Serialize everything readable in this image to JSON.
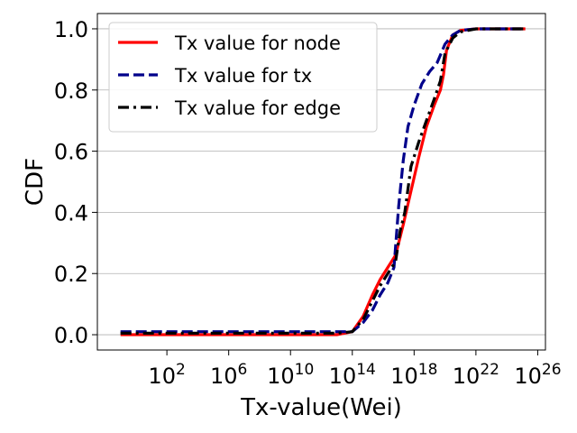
{
  "chart_data": {
    "type": "line",
    "xlabel": "Tx-value(Wei)",
    "ylabel": "CDF",
    "x_scale": "log10",
    "xlim_exp": [
      -2.5,
      26.5
    ],
    "ylim": [
      -0.05,
      1.05
    ],
    "grid": "y-major",
    "legend_position": "top-left",
    "x_ticks": [
      {
        "exp": 2,
        "base": "10",
        "sup": "2"
      },
      {
        "exp": 6,
        "base": "10",
        "sup": "6"
      },
      {
        "exp": 10,
        "base": "10",
        "sup": "10"
      },
      {
        "exp": 14,
        "base": "10",
        "sup": "14"
      },
      {
        "exp": 18,
        "base": "10",
        "sup": "18"
      },
      {
        "exp": 22,
        "base": "10",
        "sup": "22"
      },
      {
        "exp": 26,
        "base": "10",
        "sup": "26"
      }
    ],
    "y_ticks": [
      {
        "value": 0.0,
        "label": "0.0"
      },
      {
        "value": 0.2,
        "label": "0.2"
      },
      {
        "value": 0.4,
        "label": "0.4"
      },
      {
        "value": 0.6,
        "label": "0.6"
      },
      {
        "value": 0.8,
        "label": "0.8"
      },
      {
        "value": 1.0,
        "label": "1.0"
      }
    ],
    "series": [
      {
        "name": "Tx value for node",
        "color": "#ff0000",
        "dash": "solid",
        "points": [
          [
            -1,
            0
          ],
          [
            13,
            0
          ],
          [
            14,
            0.01
          ],
          [
            14.7,
            0.06
          ],
          [
            15.3,
            0.13
          ],
          [
            15.8,
            0.18
          ],
          [
            16.3,
            0.22
          ],
          [
            16.8,
            0.26
          ],
          [
            17.3,
            0.36
          ],
          [
            17.8,
            0.47
          ],
          [
            18.3,
            0.58
          ],
          [
            18.8,
            0.68
          ],
          [
            19.3,
            0.75
          ],
          [
            19.7,
            0.8
          ],
          [
            19.9,
            0.85
          ],
          [
            20.1,
            0.93
          ],
          [
            20.5,
            0.98
          ],
          [
            21,
            0.995
          ],
          [
            22,
            1.0
          ],
          [
            25.2,
            1.0
          ]
        ]
      },
      {
        "name": "Tx value for tx",
        "color": "#00008b",
        "dash": "dashed",
        "points": [
          [
            -1,
            0.01
          ],
          [
            13,
            0.01
          ],
          [
            14,
            0.01
          ],
          [
            14.7,
            0.04
          ],
          [
            15.3,
            0.08
          ],
          [
            15.8,
            0.13
          ],
          [
            16.3,
            0.17
          ],
          [
            16.7,
            0.22
          ],
          [
            17,
            0.42
          ],
          [
            17.3,
            0.57
          ],
          [
            17.6,
            0.68
          ],
          [
            18,
            0.75
          ],
          [
            18.5,
            0.82
          ],
          [
            19,
            0.86
          ],
          [
            19.5,
            0.89
          ],
          [
            20,
            0.95
          ],
          [
            20.5,
            0.98
          ],
          [
            21,
            0.995
          ],
          [
            22,
            1.0
          ],
          [
            25.2,
            1.0
          ]
        ]
      },
      {
        "name": "Tx value for edge",
        "color": "#000000",
        "dash": "dashdot",
        "points": [
          [
            -1,
            0.005
          ],
          [
            13,
            0.005
          ],
          [
            14,
            0.01
          ],
          [
            14.7,
            0.05
          ],
          [
            15.3,
            0.11
          ],
          [
            15.8,
            0.16
          ],
          [
            16.3,
            0.2
          ],
          [
            16.8,
            0.24
          ],
          [
            17.1,
            0.34
          ],
          [
            17.4,
            0.4
          ],
          [
            17.8,
            0.55
          ],
          [
            18.3,
            0.63
          ],
          [
            18.8,
            0.7
          ],
          [
            19.3,
            0.77
          ],
          [
            19.7,
            0.83
          ],
          [
            20.0,
            0.92
          ],
          [
            20.5,
            0.97
          ],
          [
            21,
            0.99
          ],
          [
            22,
            1.0
          ],
          [
            25.2,
            1.0
          ]
        ]
      }
    ]
  }
}
